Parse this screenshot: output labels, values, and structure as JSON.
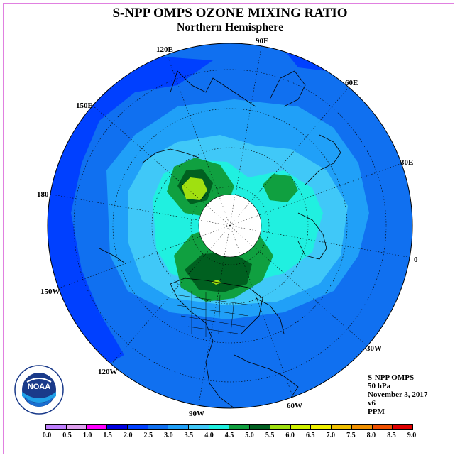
{
  "title": "S-NPP OMPS OZONE MIXING RATIO",
  "subtitle": "Northern Hemisphere",
  "longitude_labels": {
    "e90": "90E",
    "e60": "60E",
    "e30": "30E",
    "zero": "0",
    "w30": "30W",
    "w60": "60W",
    "w90": "90W",
    "w120": "120W",
    "w150": "150W",
    "lon180": "180",
    "e150": "150E",
    "e120": "120E"
  },
  "info": {
    "instrument": "S-NPP OMPS",
    "level": "50 hPa",
    "date": "November 3, 2017",
    "version": "v6",
    "unit": "PPM"
  },
  "logo": {
    "text": "NOAA",
    "ring_text": "NATIONAL OCEANIC AND ATMOSPHERIC ADMINISTRATION · U.S. DEPARTMENT OF COMMERCE"
  },
  "colorbar": {
    "ticks": [
      "0.0",
      "0.5",
      "1.0",
      "1.5",
      "2.0",
      "2.5",
      "3.0",
      "3.5",
      "4.0",
      "4.5",
      "5.0",
      "5.5",
      "6.0",
      "6.5",
      "7.0",
      "7.5",
      "8.0",
      "8.5",
      "9.0"
    ],
    "colors": [
      "#c080ff",
      "#e0a0f0",
      "#ff00ff",
      "#0000e0",
      "#0040ff",
      "#1070f0",
      "#20a0f8",
      "#40c8f8",
      "#20f0e0",
      "#10a040",
      "#006020",
      "#a0e010",
      "#d0f000",
      "#f0f000",
      "#f0c000",
      "#f09000",
      "#f05000",
      "#e00000",
      "#805030"
    ]
  },
  "map_levels": [
    {
      "level": "2.0",
      "color": "#0040ff"
    },
    {
      "level": "2.5",
      "color": "#1070f0"
    },
    {
      "level": "3.0",
      "color": "#20a0f8"
    },
    {
      "level": "3.5",
      "color": "#40c8f8"
    },
    {
      "level": "4.0",
      "color": "#20f0e0"
    },
    {
      "level": "4.5",
      "color": "#10a040"
    },
    {
      "level": "5.0",
      "color": "#006020"
    },
    {
      "level": "5.5",
      "color": "#a0e010"
    }
  ]
}
